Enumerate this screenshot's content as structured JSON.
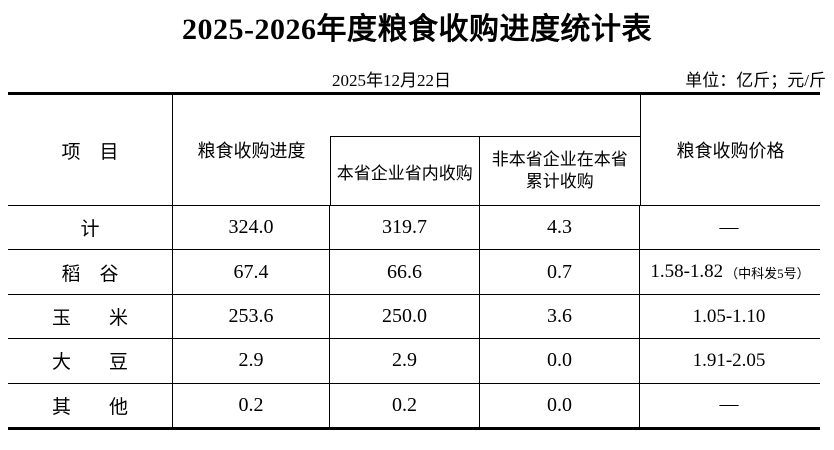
{
  "title": "2025-2026年度粮食收购进度统计表",
  "meta": {
    "date": "2025年12月22日",
    "unit": "单位：亿斤；元/斤"
  },
  "table": {
    "headers": {
      "item": "项　目",
      "progress": "粮食收购进度",
      "local": "本省企业省内收购",
      "nonlocal": "非本省企业在本省\n累计收购",
      "price": "粮食收购价格"
    },
    "rows": [
      {
        "item": "计",
        "progress": "324.0",
        "local": "319.7",
        "nonlocal": "4.3",
        "price": "—",
        "price_note": ""
      },
      {
        "item": "稻　谷",
        "progress": "67.4",
        "local": "66.6",
        "nonlocal": "0.7",
        "price": "1.58-1.82",
        "price_note": "（中科发5号）"
      },
      {
        "item": "玉　　米",
        "progress": "253.6",
        "local": "250.0",
        "nonlocal": "3.6",
        "price": "1.05-1.10",
        "price_note": ""
      },
      {
        "item": "大　　豆",
        "progress": "2.9",
        "local": "2.9",
        "nonlocal": "0.0",
        "price": "1.91-2.05",
        "price_note": ""
      },
      {
        "item": "其　　他",
        "progress": "0.2",
        "local": "0.2",
        "nonlocal": "0.0",
        "price": "—",
        "price_note": ""
      }
    ]
  },
  "colors": {
    "text": "#000000",
    "background": "#ffffff",
    "line": "#000000"
  }
}
